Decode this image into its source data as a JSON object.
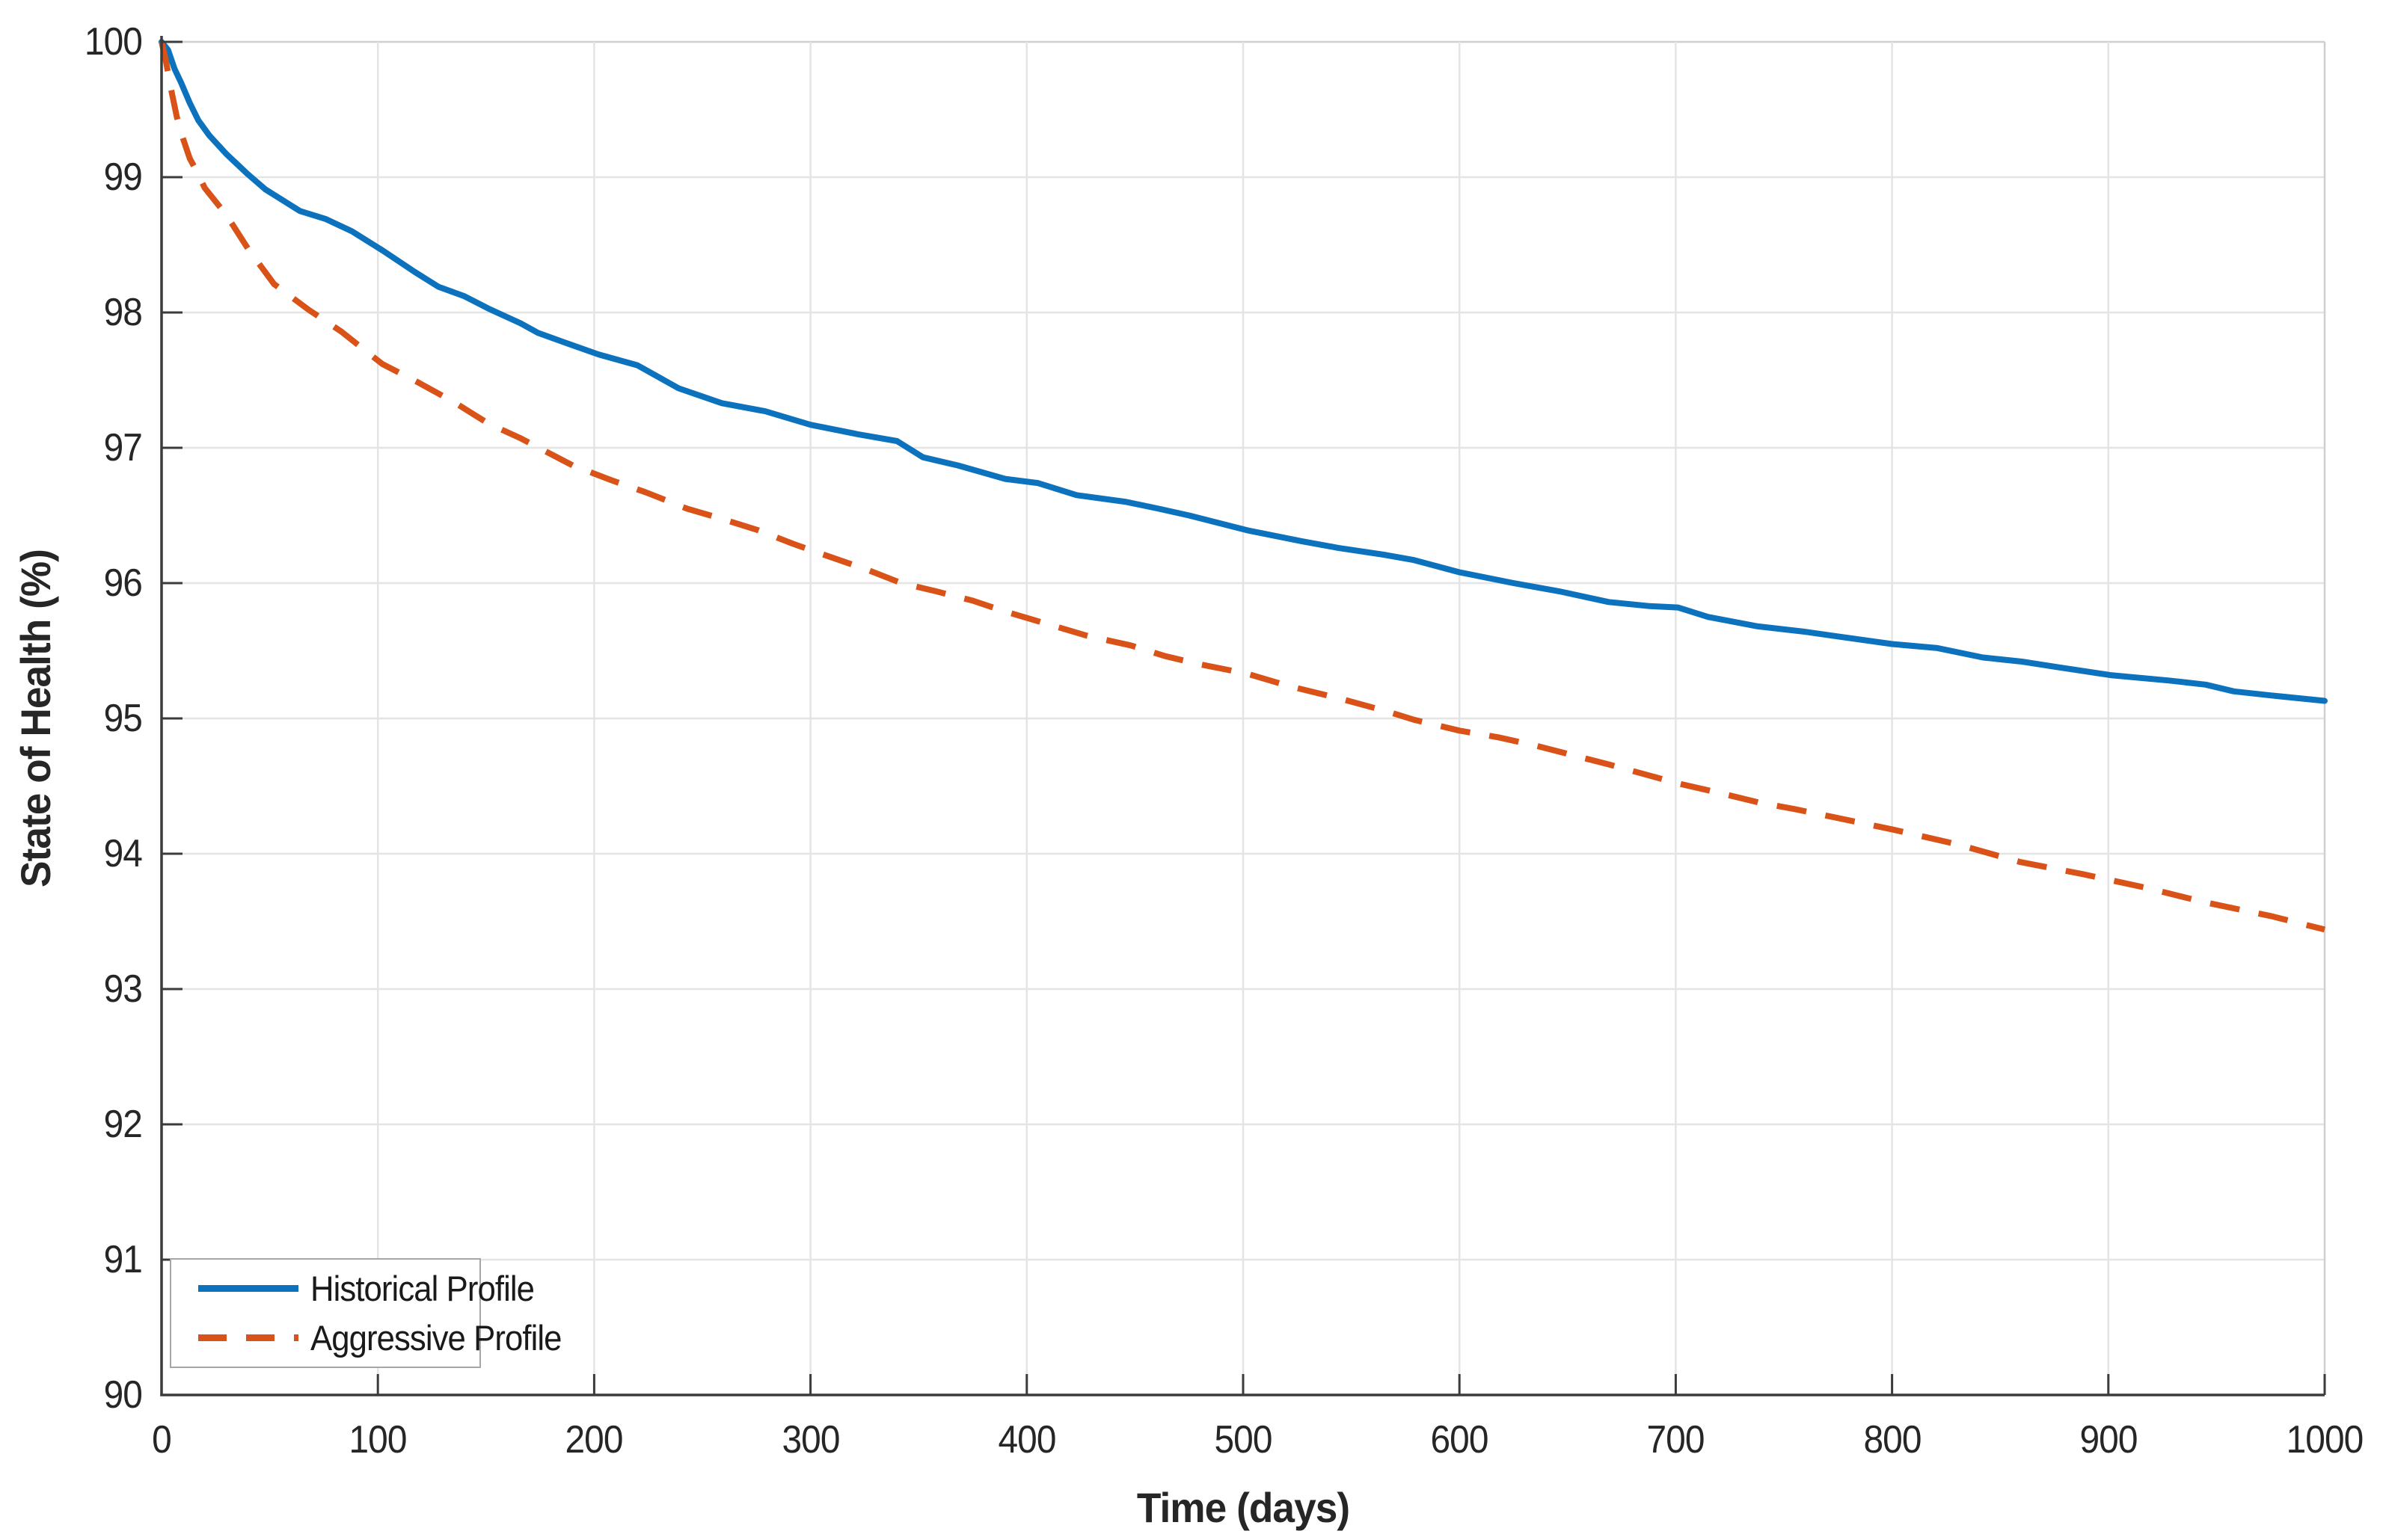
{
  "figure": {
    "background": "#ffffff"
  },
  "chart_data": {
    "type": "line",
    "title": "",
    "xlabel": "Time (days)",
    "ylabel": "State of Health (%)",
    "xlim": [
      0,
      1000
    ],
    "ylim": [
      90,
      100
    ],
    "xticks": [
      0,
      100,
      200,
      300,
      400,
      500,
      600,
      700,
      800,
      900,
      1000
    ],
    "yticks": [
      90,
      91,
      92,
      93,
      94,
      95,
      96,
      97,
      98,
      99,
      100
    ],
    "grid": true,
    "legend_position": "bottom-left",
    "colors": {
      "axis": "#3b3b3b",
      "grid": "#e4e4e4",
      "box": "#cfcfcf",
      "tick_label": "#262626",
      "legend_border": "#a6a6a6"
    },
    "series": [
      {
        "name": "Historical Profile",
        "color": "#0c72bd",
        "line_style": "solid",
        "points": [
          [
            0,
            100
          ],
          [
            3,
            99.94
          ],
          [
            6,
            99.8
          ],
          [
            9,
            99.7
          ],
          [
            13,
            99.55
          ],
          [
            17,
            99.42
          ],
          [
            22,
            99.31
          ],
          [
            30,
            99.17
          ],
          [
            40,
            99.02
          ],
          [
            48,
            98.91
          ],
          [
            57,
            98.82
          ],
          [
            64,
            98.75
          ],
          [
            76,
            98.69
          ],
          [
            88,
            98.6
          ],
          [
            102,
            98.46
          ],
          [
            117,
            98.3
          ],
          [
            128,
            98.19
          ],
          [
            140,
            98.12
          ],
          [
            151,
            98.03
          ],
          [
            166,
            97.92
          ],
          [
            174,
            97.85
          ],
          [
            186,
            97.78
          ],
          [
            202,
            97.69
          ],
          [
            220,
            97.61
          ],
          [
            239,
            97.44
          ],
          [
            259,
            97.33
          ],
          [
            279,
            97.27
          ],
          [
            300,
            97.17
          ],
          [
            322,
            97.1
          ],
          [
            340,
            97.05
          ],
          [
            352,
            96.93
          ],
          [
            368,
            96.87
          ],
          [
            390,
            96.77
          ],
          [
            405,
            96.74
          ],
          [
            423,
            96.65
          ],
          [
            446,
            96.6
          ],
          [
            461,
            96.55
          ],
          [
            475,
            96.5
          ],
          [
            502,
            96.39
          ],
          [
            527,
            96.31
          ],
          [
            544,
            96.26
          ],
          [
            565,
            96.21
          ],
          [
            579,
            96.17
          ],
          [
            600,
            96.08
          ],
          [
            625,
            96
          ],
          [
            646,
            95.94
          ],
          [
            669,
            95.86
          ],
          [
            688,
            95.83
          ],
          [
            701,
            95.82
          ],
          [
            715,
            95.75
          ],
          [
            738,
            95.68
          ],
          [
            760,
            95.64
          ],
          [
            773,
            95.61
          ],
          [
            800,
            95.55
          ],
          [
            821,
            95.52
          ],
          [
            842,
            95.45
          ],
          [
            860,
            95.42
          ],
          [
            876,
            95.38
          ],
          [
            901,
            95.32
          ],
          [
            928,
            95.28
          ],
          [
            945,
            95.25
          ],
          [
            958,
            95.2
          ],
          [
            975,
            95.17
          ],
          [
            1000,
            95.13
          ]
        ]
      },
      {
        "name": "Aggressive Profile",
        "color": "#d95319",
        "line_style": "dashed",
        "points": [
          [
            0,
            100
          ],
          [
            2,
            99.86
          ],
          [
            4,
            99.68
          ],
          [
            7,
            99.45
          ],
          [
            9,
            99.33
          ],
          [
            13,
            99.14
          ],
          [
            16,
            99.05
          ],
          [
            20,
            98.92
          ],
          [
            25,
            98.82
          ],
          [
            30,
            98.72
          ],
          [
            40,
            98.47
          ],
          [
            52,
            98.21
          ],
          [
            68,
            98.02
          ],
          [
            83,
            97.86
          ],
          [
            102,
            97.62
          ],
          [
            119,
            97.48
          ],
          [
            135,
            97.34
          ],
          [
            151,
            97.18
          ],
          [
            166,
            97.07
          ],
          [
            178,
            96.97
          ],
          [
            190,
            96.87
          ],
          [
            208,
            96.76
          ],
          [
            224,
            96.67
          ],
          [
            243,
            96.55
          ],
          [
            258,
            96.48
          ],
          [
            276,
            96.39
          ],
          [
            292,
            96.29
          ],
          [
            308,
            96.2
          ],
          [
            326,
            96.1
          ],
          [
            342,
            96
          ],
          [
            358,
            95.94
          ],
          [
            375,
            95.87
          ],
          [
            390,
            95.79
          ],
          [
            407,
            95.71
          ],
          [
            428,
            95.61
          ],
          [
            448,
            95.54
          ],
          [
            464,
            95.46
          ],
          [
            480,
            95.4
          ],
          [
            502,
            95.33
          ],
          [
            521,
            95.24
          ],
          [
            544,
            95.15
          ],
          [
            567,
            95.05
          ],
          [
            579,
            94.99
          ],
          [
            600,
            94.91
          ],
          [
            618,
            94.86
          ],
          [
            635,
            94.8
          ],
          [
            652,
            94.73
          ],
          [
            669,
            94.66
          ],
          [
            685,
            94.59
          ],
          [
            701,
            94.52
          ],
          [
            720,
            94.45
          ],
          [
            738,
            94.38
          ],
          [
            755,
            94.33
          ],
          [
            773,
            94.27
          ],
          [
            800,
            94.18
          ],
          [
            830,
            94.07
          ],
          [
            859,
            93.94
          ],
          [
            888,
            93.85
          ],
          [
            917,
            93.75
          ],
          [
            945,
            93.64
          ],
          [
            975,
            93.54
          ],
          [
            1000,
            93.44
          ]
        ]
      }
    ]
  }
}
